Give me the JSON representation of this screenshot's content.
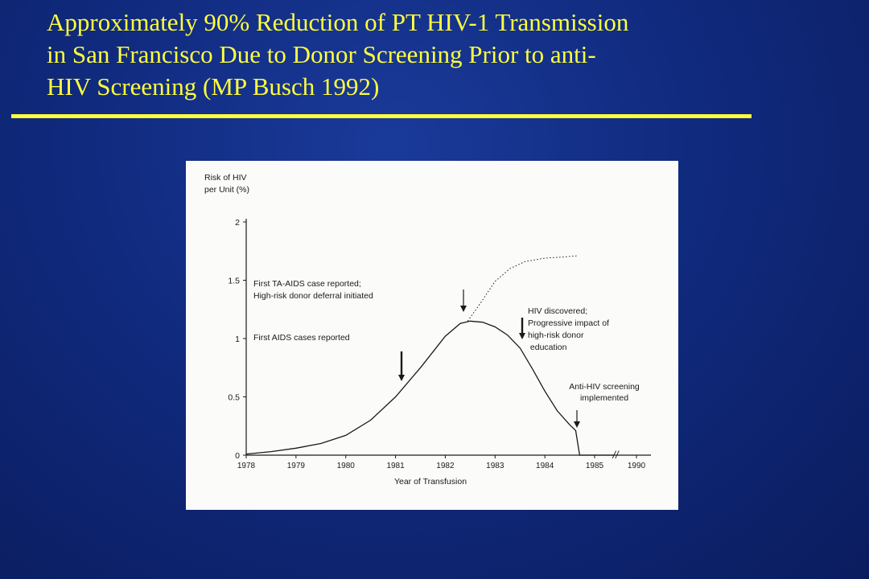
{
  "slide": {
    "title": "Approximately 90% Reduction of PT HIV-1  Transmission\nin San Francisco Due to Donor Screening Prior to anti-\nHIV Screening (MP Busch 1992)"
  },
  "colors": {
    "background": "#102a7e",
    "title": "#ffff3c",
    "panel": "#fbfbfa",
    "ink": "#1a1a1a"
  },
  "chart_data": {
    "type": "line",
    "title": "",
    "xlabel": "Year of Transfusion",
    "ylabel": "Risk of HIV\nper Unit (%)",
    "xlim": [
      1978,
      1985
    ],
    "ylim": [
      0,
      2
    ],
    "x_ticks": [
      "1978",
      "1979",
      "1980",
      "1981",
      "1982",
      "1983",
      "1984",
      "1985",
      "1990"
    ],
    "y_ticks": [
      "2",
      "1.5",
      "1",
      "0.5",
      "0"
    ],
    "axis_break": "//",
    "grid": false,
    "series": [
      {
        "style": "solid",
        "x": [
          1978,
          1978.5,
          1979,
          1979.5,
          1980,
          1980.5,
          1981,
          1981.5,
          1982,
          1982.3,
          1982.5,
          1982.75,
          1983,
          1983.25,
          1983.5,
          1983.75,
          1984,
          1984.25,
          1984.5,
          1984.55,
          1984.62,
          1984.7,
          1985,
          1985.7
        ],
        "y": [
          0.01,
          0.03,
          0.06,
          0.1,
          0.17,
          0.3,
          0.5,
          0.75,
          1.02,
          1.13,
          1.15,
          1.14,
          1.1,
          1.03,
          0.92,
          0.74,
          0.55,
          0.38,
          0.26,
          0.24,
          0.21,
          0,
          0,
          0
        ]
      },
      {
        "style": "dotted",
        "x": [
          1982.45,
          1982.7,
          1983,
          1983.3,
          1983.6,
          1984,
          1984.4,
          1984.65
        ],
        "y": [
          1.15,
          1.3,
          1.49,
          1.6,
          1.66,
          1.69,
          1.7,
          1.71
        ]
      }
    ],
    "annotations": [
      {
        "text": "First TA-AIDS case reported;\nHigh-risk donor deferral initiated",
        "x": 1982.5
      },
      {
        "text": "First AIDS cases reported",
        "x": 1981.05
      },
      {
        "text": "HIV discovered;\nProgressive impact of\nhigh-risk donor\n education",
        "x": 1983.5
      },
      {
        "text": "Anti-HIV screening\nimplemented",
        "x": 1984.5
      }
    ]
  }
}
